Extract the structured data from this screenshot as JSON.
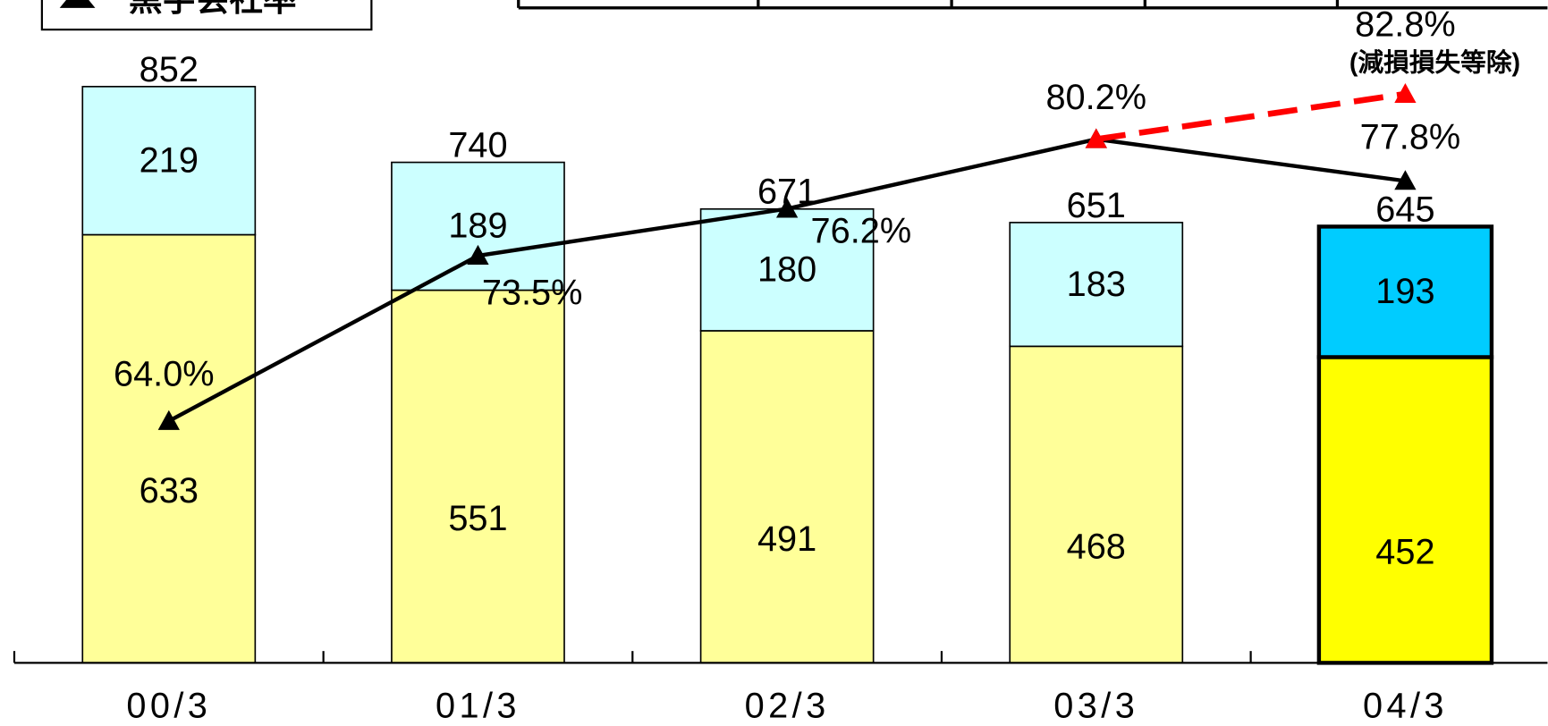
{
  "chart_data": {
    "type": "stacked_bar_line",
    "legend_label": "黒字会社率",
    "categories": [
      "00/3",
      "01/3",
      "02/3",
      "03/3",
      "04/3"
    ],
    "ylim": [
      0,
      980
    ],
    "y2lim": [
      50.1,
      88.2
    ],
    "series": [
      {
        "values": [
          633,
          551,
          491,
          468,
          452
        ],
        "colors": [
          "#ffff99",
          "#ffff99",
          "#ffff99",
          "#ffff99",
          "#ffff00"
        ]
      },
      {
        "values": [
          219,
          189,
          180,
          183,
          193
        ],
        "colors": [
          "#ccffff",
          "#ccffff",
          "#ccffff",
          "#ccffff",
          "#00ccff"
        ]
      }
    ],
    "total_labels": [
      852,
      740,
      671,
      651,
      645
    ],
    "lines": [
      {
        "name": "黒字会社率",
        "axis": "y2",
        "color": "#000000",
        "values": [
          64.0,
          73.5,
          76.2,
          80.2,
          77.8
        ],
        "value_labels": [
          "64.0%",
          "73.5%",
          "76.2%",
          "80.2%",
          "77.8%"
        ]
      },
      {
        "name": "(減損損失等除)",
        "axis": "y2",
        "color": "#ff0000",
        "dashed": true,
        "values": [
          null,
          null,
          null,
          80.2,
          82.8
        ],
        "value_labels": [
          null,
          null,
          null,
          null,
          "82.8%"
        ]
      }
    ]
  }
}
